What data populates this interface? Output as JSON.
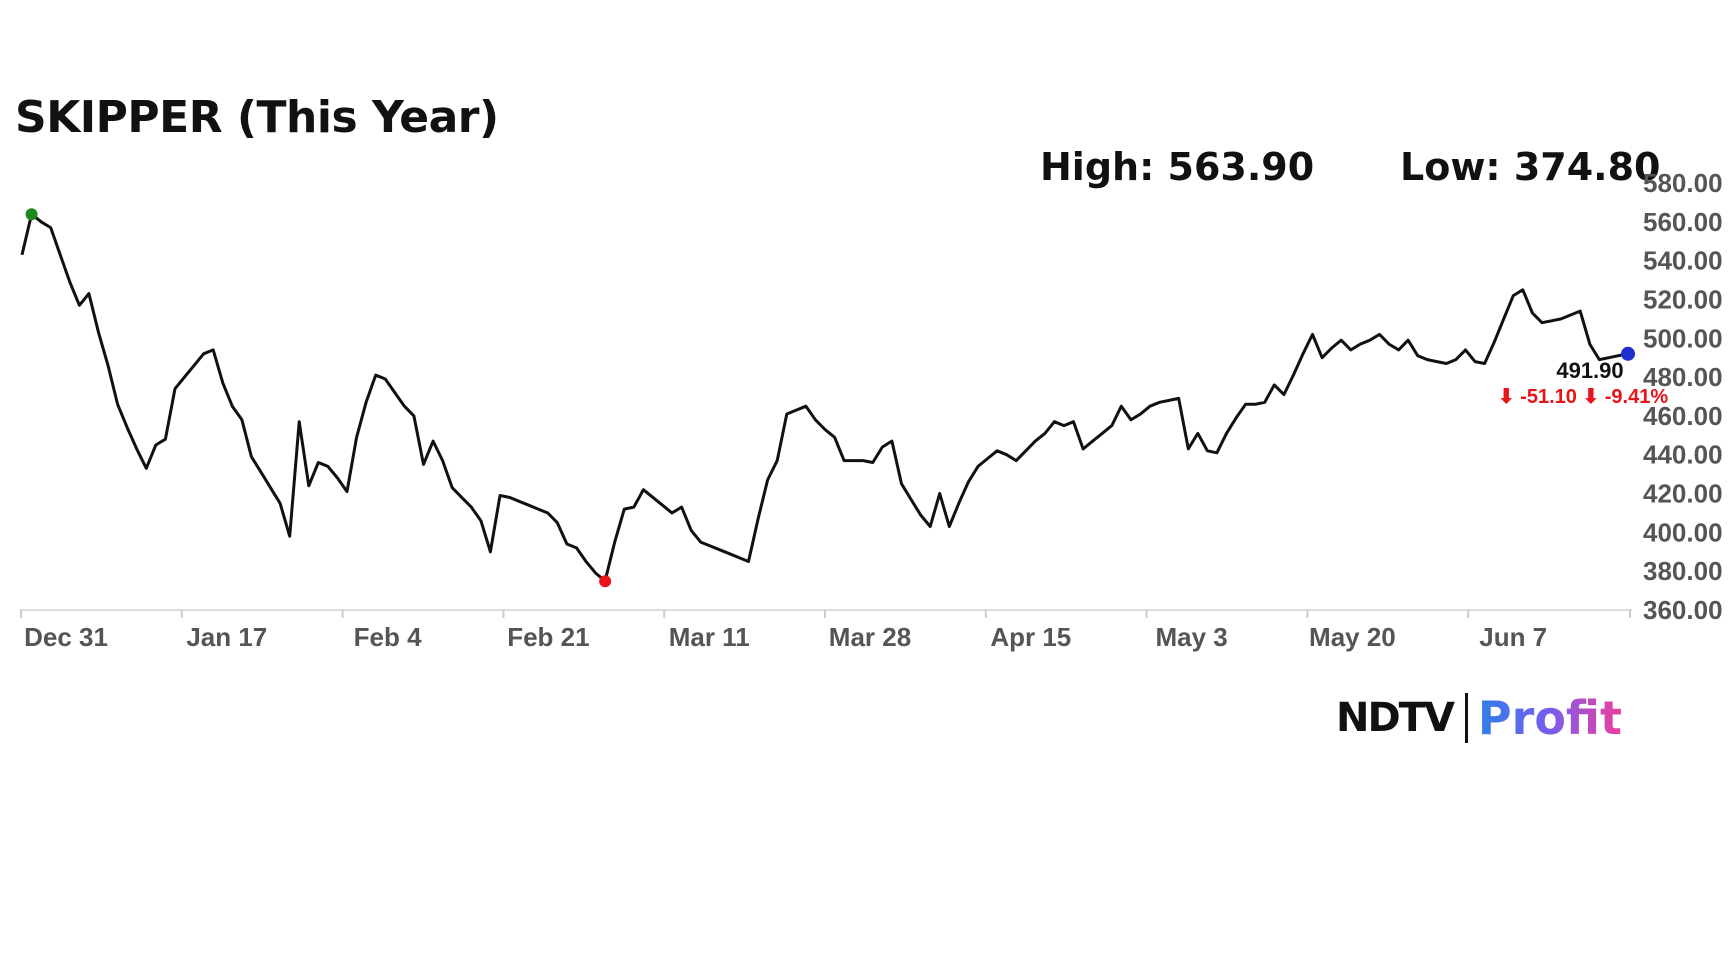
{
  "chart_data": {
    "type": "line",
    "title": "SKIPPER (This Year)",
    "high_label": "High: 563.90",
    "low_label": "Low: 374.80",
    "high": 563.9,
    "low": 374.8,
    "last_value_label": "491.90",
    "change_label": "⬇ -51.10 ⬇ -9.41%",
    "ylim": [
      360,
      580
    ],
    "y_ticks": [
      "580.00",
      "560.00",
      "540.00",
      "520.00",
      "500.00",
      "480.00",
      "460.00",
      "440.00",
      "420.00",
      "400.00",
      "380.00",
      "360.00"
    ],
    "x_ticks": [
      "Dec 31",
      "Jan 17",
      "Feb 4",
      "Feb 21",
      "Mar 11",
      "Mar 28",
      "Apr 15",
      "May 3",
      "May 20",
      "Jun 7"
    ],
    "grid": false,
    "series": [
      {
        "values": [
          543,
          564,
          560,
          557,
          543,
          529,
          517,
          523,
          503,
          486,
          466,
          454,
          443,
          433,
          445,
          448,
          474,
          480,
          486,
          492,
          494,
          477,
          465,
          458,
          439,
          431,
          423,
          415,
          398,
          457,
          424,
          436,
          434,
          428,
          421,
          449,
          467,
          481,
          479,
          472,
          465,
          460,
          435,
          447,
          437,
          423,
          418,
          413,
          406,
          390,
          419,
          418,
          416,
          414,
          412,
          410,
          405,
          394,
          392,
          385,
          379,
          375,
          395,
          412,
          413,
          422,
          418,
          414,
          410,
          413,
          401,
          395,
          393,
          391,
          389,
          387,
          385,
          407,
          427,
          437,
          461,
          463,
          465,
          458,
          453,
          449,
          437,
          437,
          437,
          436,
          444,
          447,
          425,
          417,
          409,
          403,
          420,
          403,
          415,
          426,
          434,
          438,
          442,
          440,
          437,
          442,
          447,
          451,
          457,
          455,
          457,
          443,
          447,
          451,
          455,
          465,
          458,
          461,
          465,
          467,
          468,
          469,
          443,
          451,
          442,
          441,
          451,
          459,
          466,
          466,
          467,
          476,
          471,
          481,
          492,
          502,
          490,
          495,
          499,
          494,
          497,
          499,
          502,
          497,
          494,
          499,
          491,
          489,
          488,
          487,
          489,
          494,
          488,
          487,
          498,
          510,
          522,
          525,
          513,
          508,
          509,
          510,
          512,
          514,
          497,
          489,
          490,
          491,
          492
        ]
      }
    ]
  },
  "brand": {
    "ndtv": "NDTV",
    "profit": "Profit"
  },
  "colors": {
    "line": "#111111",
    "high_marker": "#1a8a1a",
    "low_marker": "#e8141c",
    "last_marker": "#1f2fd0",
    "change": "#e8141c"
  }
}
